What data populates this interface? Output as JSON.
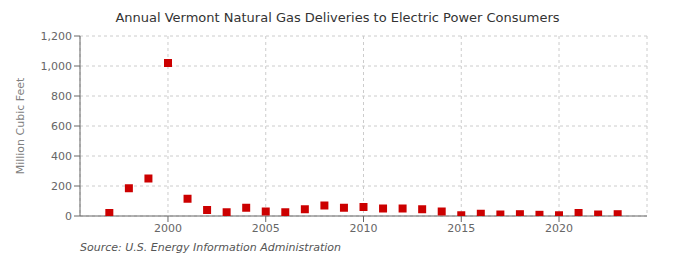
{
  "chart_data": {
    "type": "scatter",
    "title": "Annual Vermont Natural Gas Deliveries to Electric Power Consumers",
    "y_label": "Million Cubic Feet",
    "annotations": [
      "Source: U.S. Energy Information Administration"
    ],
    "x": [
      1997,
      1998,
      1999,
      2000,
      2001,
      2002,
      2003,
      2004,
      2005,
      2006,
      2007,
      2008,
      2009,
      2010,
      2011,
      2012,
      2013,
      2014,
      2015,
      2016,
      2017,
      2018,
      2019,
      2020,
      2021,
      2022,
      2023
    ],
    "values": [
      20,
      185,
      250,
      1020,
      115,
      40,
      25,
      55,
      30,
      25,
      45,
      70,
      55,
      60,
      50,
      50,
      45,
      30,
      5,
      15,
      10,
      12,
      8,
      5,
      20,
      10,
      12
    ],
    "color": "#cc0000",
    "marker": "square",
    "xlim": [
      1995.5,
      2024.5
    ],
    "xticks": [
      2000,
      2005,
      2010,
      2015,
      2020
    ],
    "ylim": [
      0,
      1200
    ],
    "yticks": [
      0,
      200,
      400,
      600,
      800,
      {
        "value": 1000,
        "label": "1,000"
      },
      {
        "value": 1200,
        "label": "1,200"
      }
    ],
    "grid": true
  }
}
